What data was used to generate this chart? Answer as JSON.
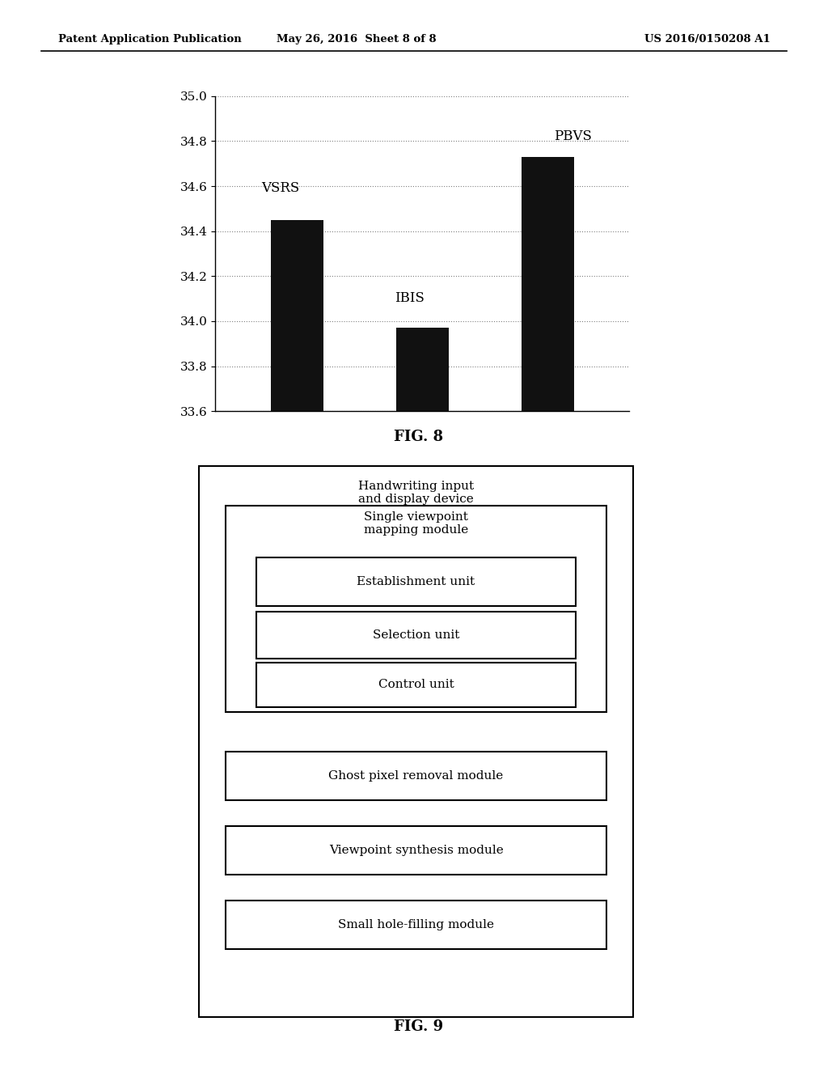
{
  "header_left": "Patent Application Publication",
  "header_center": "May 26, 2016  Sheet 8 of 8",
  "header_right": "US 2016/0150208 A1",
  "bar_categories": [
    "VSRS",
    "IBIS",
    "PBVS"
  ],
  "bar_values": [
    34.45,
    33.97,
    34.73
  ],
  "bar_color": "#111111",
  "ylim": [
    33.6,
    35.0
  ],
  "yticks": [
    33.6,
    33.8,
    34.0,
    34.2,
    34.4,
    34.6,
    34.8,
    35.0
  ],
  "fig8_label": "FIG. 8",
  "fig9_label": "FIG. 9",
  "box_outer_label": "Handwriting input\nand display device",
  "box_inner1_label": "Single viewpoint\nmapping module",
  "box_inner2_label": "Establishment unit",
  "box_inner3_label": "Selection unit",
  "box_inner4_label": "Control unit",
  "box_bottom1_label": "Ghost pixel removal module",
  "box_bottom2_label": "Viewpoint synthesis module",
  "box_bottom3_label": "Small hole-filling module",
  "background_color": "#ffffff",
  "text_color": "#000000"
}
